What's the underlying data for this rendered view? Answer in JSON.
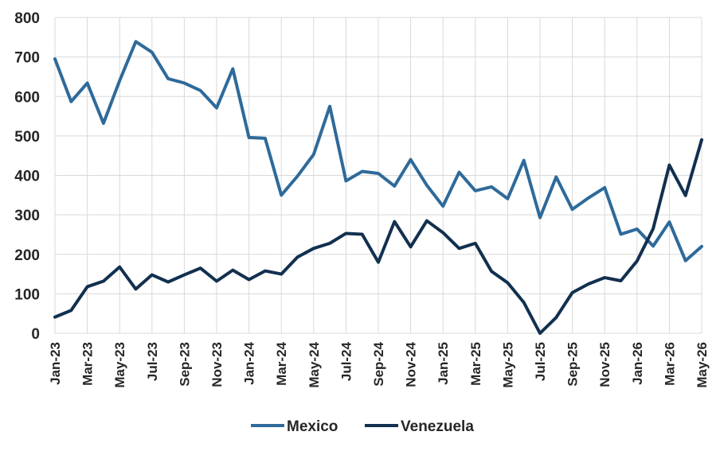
{
  "chart_data": {
    "type": "line",
    "title": "",
    "xlabel": "",
    "ylabel": "",
    "ylim": [
      0,
      800
    ],
    "yticks": [
      "0",
      "100",
      "200",
      "300",
      "400",
      "500",
      "600",
      "700",
      "800"
    ],
    "grid": true,
    "legend_position": "bottom",
    "categories": [
      "Jan-23",
      "Feb-23",
      "Mar-23",
      "Apr-23",
      "May-23",
      "Jun-23",
      "Jul-23",
      "Aug-23",
      "Sep-23",
      "Oct-23",
      "Nov-23",
      "Dec-23",
      "Jan-24",
      "Feb-24",
      "Mar-24",
      "Apr-24",
      "May-24",
      "Jun-24",
      "Jul-24",
      "Aug-24",
      "Sep-24",
      "Oct-24",
      "Nov-24",
      "Dec-24",
      "Jan-25",
      "Feb-25",
      "Mar-25",
      "Apr-25",
      "May-25",
      "Jun-25",
      "Jul-25",
      "Aug-25",
      "Sep-25",
      "Oct-25",
      "Nov-25",
      "Dec-25",
      "Jan-26",
      "Feb-26",
      "Mar-26",
      "Apr-26",
      "May-26"
    ],
    "x_tick_labels": [
      "Jan-23",
      "Mar-23",
      "May-23",
      "Jul-23",
      "Sep-23",
      "Nov-23",
      "Jan-24",
      "Mar-24",
      "May-24",
      "Jul-24",
      "Sep-24",
      "Nov-24",
      "Jan-25",
      "Mar-25",
      "May-25",
      "Jul-25",
      "Sep-25",
      "Nov-25",
      "Jan-26",
      "Mar-26",
      "May-26"
    ],
    "series": [
      {
        "name": "Mexico",
        "color": "#2e6a9a",
        "values": [
          695,
          587,
          634,
          532,
          640,
          739,
          712,
          645,
          634,
          615,
          571,
          670,
          496,
          494,
          350,
          398,
          453,
          575,
          386,
          410,
          405,
          373,
          440,
          375,
          322,
          408,
          361,
          371,
          341,
          438,
          293,
          396,
          314,
          343,
          369,
          251,
          264,
          221,
          282,
          184,
          220
        ]
      },
      {
        "name": "Venezuela",
        "color": "#12304f",
        "values": [
          41,
          58,
          118,
          132,
          168,
          112,
          148,
          130,
          148,
          165,
          132,
          160,
          136,
          158,
          150,
          193,
          215,
          228,
          253,
          251,
          180,
          283,
          219,
          285,
          255,
          215,
          228,
          157,
          128,
          78,
          0,
          40,
          103,
          125,
          141,
          133,
          183,
          265,
          426,
          349,
          490
        ]
      }
    ]
  }
}
